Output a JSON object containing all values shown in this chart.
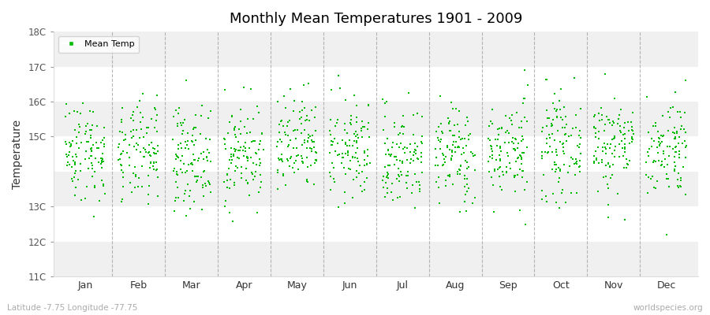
{
  "title": "Monthly Mean Temperatures 1901 - 2009",
  "ylabel": "Temperature",
  "xlabel_labels": [
    "Jan",
    "Feb",
    "Mar",
    "Apr",
    "May",
    "Jun",
    "Jul",
    "Aug",
    "Sep",
    "Oct",
    "Nov",
    "Dec"
  ],
  "ylim": [
    11,
    18
  ],
  "yticks": [
    11,
    12,
    13,
    15,
    16,
    17,
    18
  ],
  "ytick_labels": [
    "11C",
    "12C",
    "13C",
    "15C",
    "16C",
    "17C",
    "18C"
  ],
  "marker_color": "#00bb00",
  "bg_color": "#ffffff",
  "band_colors": [
    "#f0f0f0",
    "#ffffff"
  ],
  "legend_label": "Mean Temp",
  "footer_left": "Latitude -7.75 Longitude -77.75",
  "footer_right": "worldspecies.org",
  "monthly_means": [
    14.6,
    14.5,
    14.4,
    14.5,
    14.7,
    14.6,
    14.4,
    14.5,
    14.6,
    14.7,
    14.8,
    14.7
  ],
  "monthly_stds": [
    0.72,
    0.72,
    0.72,
    0.72,
    0.72,
    0.72,
    0.72,
    0.72,
    0.72,
    0.72,
    0.72,
    0.72
  ],
  "seed": 42,
  "n_years": 109,
  "marker_size": 3,
  "dashed_line_color": "#999999"
}
